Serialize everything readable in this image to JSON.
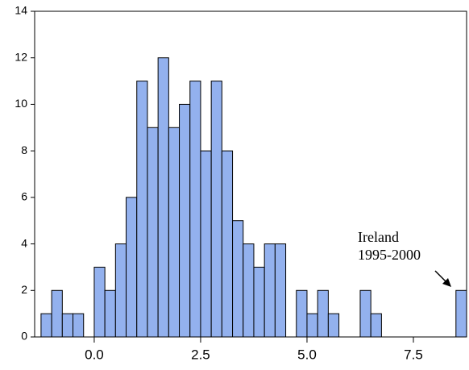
{
  "chart_data": {
    "type": "histogram",
    "bins": [
      -1.25,
      -1.0,
      -0.75,
      -0.5,
      -0.25,
      0.0,
      0.25,
      0.5,
      0.75,
      1.0,
      1.25,
      1.5,
      1.75,
      2.0,
      2.25,
      2.5,
      2.75,
      3.0,
      3.25,
      3.5,
      3.75,
      4.0,
      4.25,
      4.5,
      4.75,
      5.0,
      5.25,
      5.5,
      5.75,
      6.0,
      6.25,
      6.5,
      6.75,
      7.0,
      7.25,
      7.5,
      7.75,
      8.0,
      8.25,
      8.5,
      8.75
    ],
    "values": [
      1,
      2,
      1,
      1,
      0,
      3,
      2,
      4,
      6,
      11,
      9,
      12,
      9,
      10,
      11,
      8,
      11,
      8,
      5,
      4,
      3,
      4,
      4,
      0,
      2,
      1,
      2,
      1,
      0,
      0,
      2,
      1,
      0,
      0,
      0,
      0,
      0,
      0,
      0,
      2
    ],
    "color": "#93b1ee",
    "xlim": [
      -1.4,
      8.75
    ],
    "ylim": [
      0,
      14
    ],
    "xticks": [
      {
        "value": 0,
        "label": "0.0"
      },
      {
        "value": 2.5,
        "label": "2.5"
      },
      {
        "value": 5,
        "label": "5.0"
      },
      {
        "value": 7.5,
        "label": "7.5"
      }
    ],
    "yticks": [
      0,
      2,
      4,
      6,
      8,
      10,
      12,
      14
    ],
    "annotation": [
      "Ireland",
      "1995-2000"
    ]
  }
}
